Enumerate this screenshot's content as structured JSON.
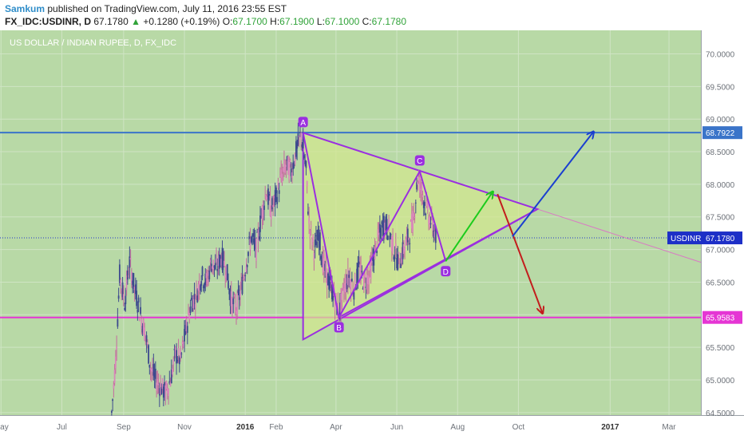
{
  "header": {
    "author": "Samkum",
    "published": "published on TradingView.com, July 11, 2016 23:55 EST",
    "symbol": "FX_IDC:USDINR, D",
    "last": "67.1780",
    "change_arrow": "▲",
    "change": "+0.1280 (+0.19%)",
    "o_label": "O:",
    "o_value": "67.1700",
    "h_label": "H:",
    "h_value": "67.1900",
    "l_label": "L:",
    "l_value": "67.1000",
    "c_label": "C:",
    "c_value": "67.1780"
  },
  "colors": {
    "chart_bg": "#b8d9a6",
    "pattern_fill": "#d3e78e",
    "pattern_line": "#9b2ee0",
    "resistance": "#3a74c9",
    "support": "#e535d4",
    "up_arrow": "#1ccc1c",
    "down_arrow": "#c31d1d",
    "breakout_arrow": "#1a3fd0",
    "last_price_line": "#2233cc"
  },
  "chart_data": {
    "type": "candlestick",
    "title": "US DOLLAR / INDIAN RUPEE, D, FX_IDC",
    "x_ticks": [
      "May",
      "Jul",
      "Sep",
      "Nov",
      "2016",
      "Feb",
      "Apr",
      "Jun",
      "Aug",
      "Oct",
      "2017",
      "Mar"
    ],
    "y_ticks": [
      "70.0000",
      "69.5000",
      "69.0000",
      "68.5000",
      "68.0000",
      "67.5000",
      "67.0000",
      "66.5000",
      "66.0000",
      "65.5000",
      "65.0000",
      "64.5000"
    ],
    "ylim": [
      64.4,
      70.3
    ],
    "horizontal_levels": [
      {
        "value": 68.7922,
        "label": "68.7922",
        "color": "#3a74c9"
      },
      {
        "value": 65.9583,
        "label": "65.9583",
        "color": "#e535d4"
      }
    ],
    "last_price": {
      "symbol": "USDINR",
      "value": 67.178,
      "label": "67.1780"
    },
    "pattern_points": [
      {
        "label": "A",
        "date": "2016-02-28",
        "price": 68.79
      },
      {
        "label": "B",
        "date": "2016-04-04",
        "price": 65.96
      },
      {
        "label": "C",
        "date": "2016-06-24",
        "price": 68.2
      },
      {
        "label": "D",
        "date": "2016-07-20",
        "price": 66.82
      }
    ],
    "triangle_apex": {
      "date": "2016-10-20",
      "price": 67.62
    },
    "projections": [
      {
        "name": "up",
        "from": {
          "date": "2016-07-20",
          "price": 66.82
        },
        "to": {
          "date": "2016-09-05",
          "price": 67.88
        }
      },
      {
        "name": "down",
        "from": {
          "date": "2016-09-10",
          "price": 67.85
        },
        "to": {
          "date": "2016-10-25",
          "price": 66.03
        }
      },
      {
        "name": "breakout",
        "from": {
          "date": "2016-09-25",
          "price": 67.2
        },
        "to": {
          "date": "2016-12-15",
          "price": 68.8
        }
      }
    ],
    "price_path": [
      [
        "2015-08-20",
        64.5
      ],
      [
        "2015-08-24",
        65.3
      ],
      [
        "2015-08-28",
        66.6
      ],
      [
        "2015-09-02",
        66.2
      ],
      [
        "2015-09-07",
        66.8
      ],
      [
        "2015-09-12",
        66.4
      ],
      [
        "2015-09-18",
        66.0
      ],
      [
        "2015-09-23",
        65.7
      ],
      [
        "2015-09-28",
        65.2
      ],
      [
        "2015-10-03",
        65.0
      ],
      [
        "2015-10-08",
        64.9
      ],
      [
        "2015-10-13",
        64.8
      ],
      [
        "2015-10-18",
        65.0
      ],
      [
        "2015-10-23",
        65.4
      ],
      [
        "2015-10-28",
        65.3
      ],
      [
        "2015-11-03",
        65.8
      ],
      [
        "2015-11-08",
        66.2
      ],
      [
        "2015-11-13",
        66.3
      ],
      [
        "2015-11-18",
        66.6
      ],
      [
        "2015-11-23",
        66.5
      ],
      [
        "2015-11-28",
        66.8
      ],
      [
        "2015-12-03",
        66.7
      ],
      [
        "2015-12-08",
        66.9
      ],
      [
        "2015-12-13",
        66.7
      ],
      [
        "2015-12-18",
        66.2
      ],
      [
        "2015-12-23",
        66.1
      ],
      [
        "2015-12-28",
        66.4
      ],
      [
        "2016-01-02",
        66.8
      ],
      [
        "2016-01-07",
        67.2
      ],
      [
        "2016-01-12",
        67.0
      ],
      [
        "2016-01-17",
        67.5
      ],
      [
        "2016-01-22",
        67.9
      ],
      [
        "2016-01-27",
        67.6
      ],
      [
        "2016-02-01",
        67.8
      ],
      [
        "2016-02-06",
        68.1
      ],
      [
        "2016-02-11",
        68.3
      ],
      [
        "2016-02-16",
        68.2
      ],
      [
        "2016-02-21",
        68.5
      ],
      [
        "2016-02-26",
        68.78
      ],
      [
        "2016-03-02",
        68.2
      ],
      [
        "2016-03-05",
        67.4
      ],
      [
        "2016-03-10",
        67.0
      ],
      [
        "2016-03-15",
        67.2
      ],
      [
        "2016-03-20",
        66.7
      ],
      [
        "2016-03-25",
        66.5
      ],
      [
        "2016-03-30",
        66.3
      ],
      [
        "2016-04-04",
        66.0
      ],
      [
        "2016-04-09",
        66.4
      ],
      [
        "2016-04-14",
        66.6
      ],
      [
        "2016-04-19",
        66.4
      ],
      [
        "2016-04-24",
        66.7
      ],
      [
        "2016-04-29",
        66.5
      ],
      [
        "2016-05-04",
        66.6
      ],
      [
        "2016-05-09",
        66.9
      ],
      [
        "2016-05-14",
        67.2
      ],
      [
        "2016-05-19",
        67.4
      ],
      [
        "2016-05-24",
        67.3
      ],
      [
        "2016-05-29",
        67.0
      ],
      [
        "2016-06-03",
        66.8
      ],
      [
        "2016-06-08",
        67.0
      ],
      [
        "2016-06-13",
        67.2
      ],
      [
        "2016-06-18",
        67.5
      ],
      [
        "2016-06-22",
        68.1
      ],
      [
        "2016-06-26",
        67.9
      ],
      [
        "2016-07-01",
        67.6
      ],
      [
        "2016-07-06",
        67.4
      ],
      [
        "2016-07-11",
        67.18
      ]
    ]
  }
}
